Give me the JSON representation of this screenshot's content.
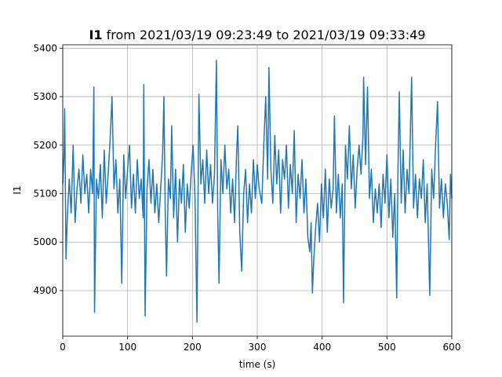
{
  "chart_data": {
    "type": "line",
    "title_bold": "I1",
    "title": "from 2021/03/19 09:23:49 to 2021/03/19 09:33:49",
    "x_label": "time (s)",
    "y_label": "I1",
    "xlim": [
      0,
      600
    ],
    "xticks": [
      0,
      100,
      200,
      300,
      400,
      500,
      600
    ],
    "ylim": [
      4806,
      5407
    ],
    "yticks": [
      4900,
      5000,
      5100,
      5200,
      5300,
      5400
    ],
    "grid": true,
    "color": "#1f77b4",
    "x": [
      0,
      2,
      3,
      5,
      7,
      10,
      13,
      16,
      19,
      22,
      25,
      28,
      31,
      34,
      37,
      40,
      43,
      46,
      48,
      49,
      52,
      55,
      58,
      61,
      64,
      67,
      70,
      73,
      76,
      79,
      82,
      85,
      88,
      91,
      94,
      97,
      100,
      103,
      106,
      109,
      112,
      115,
      118,
      121,
      124,
      125,
      127,
      130,
      133,
      136,
      139,
      142,
      145,
      148,
      151,
      154,
      156,
      158,
      160,
      163,
      166,
      168,
      171,
      174,
      177,
      180,
      183,
      186,
      189,
      192,
      195,
      198,
      201,
      204,
      207,
      210,
      213,
      216,
      219,
      222,
      225,
      228,
      231,
      234,
      237,
      239,
      241,
      244,
      247,
      250,
      253,
      256,
      259,
      262,
      265,
      268,
      270,
      273,
      276,
      279,
      282,
      285,
      288,
      291,
      294,
      297,
      300,
      303,
      307,
      310,
      313,
      316,
      318,
      321,
      324,
      327,
      330,
      333,
      336,
      339,
      342,
      345,
      348,
      351,
      354,
      357,
      360,
      363,
      366,
      369,
      372,
      375,
      378,
      381,
      383,
      385,
      387,
      390,
      393,
      396,
      399,
      402,
      405,
      408,
      411,
      414,
      417,
      419,
      422,
      425,
      428,
      431,
      433,
      436,
      439,
      442,
      445,
      448,
      451,
      454,
      457,
      460,
      463,
      464,
      467,
      470,
      473,
      476,
      479,
      482,
      485,
      488,
      491,
      494,
      497,
      500,
      503,
      506,
      509,
      512,
      515,
      517,
      519,
      522,
      525,
      528,
      531,
      534,
      538,
      541,
      544,
      547,
      550,
      553,
      556,
      559,
      562,
      566,
      569,
      572,
      575,
      578,
      581,
      584,
      587,
      590,
      593,
      596,
      598,
      600
    ],
    "values": [
      5120,
      5180,
      5275,
      4965,
      5050,
      5130,
      5060,
      5200,
      5040,
      5110,
      5150,
      5080,
      5180,
      5100,
      5140,
      5060,
      5150,
      5100,
      5320,
      4855,
      5130,
      5090,
      5160,
      5050,
      5190,
      5080,
      5140,
      5210,
      5300,
      5110,
      5170,
      5060,
      5130,
      4915,
      5180,
      5090,
      5150,
      5200,
      5070,
      5140,
      5060,
      5170,
      5090,
      5130,
      5050,
      5325,
      4848,
      5110,
      5170,
      5080,
      5150,
      5060,
      5120,
      5040,
      5110,
      5180,
      5300,
      5070,
      4930,
      5130,
      5090,
      5240,
      5050,
      5150,
      5000,
      5130,
      5080,
      5160,
      5020,
      5120,
      5070,
      5140,
      5200,
      5090,
      4835,
      5305,
      5120,
      5170,
      5080,
      5190,
      5100,
      5160,
      5080,
      5140,
      5375,
      5060,
      4915,
      5170,
      5100,
      5200,
      5110,
      5150,
      5060,
      5130,
      5040,
      5180,
      5240,
      5020,
      4940,
      5100,
      5150,
      5040,
      5120,
      5060,
      5170,
      5090,
      5160,
      5110,
      5080,
      5200,
      5300,
      5130,
      5360,
      5150,
      5080,
      5220,
      5120,
      5190,
      5060,
      5170,
      5130,
      5200,
      5070,
      5160,
      5100,
      5230,
      5040,
      5140,
      5090,
      5170,
      5060,
      5130,
      5010,
      4980,
      5040,
      4895,
      4960,
      5030,
      5080,
      5000,
      5120,
      5050,
      5150,
      5020,
      5130,
      5070,
      5110,
      5260,
      5060,
      5140,
      5050,
      5120,
      4875,
      5200,
      5130,
      5240,
      5110,
      5180,
      5070,
      5150,
      5200,
      5140,
      5220,
      5340,
      5160,
      5320,
      5090,
      5150,
      5040,
      5110,
      5060,
      5120,
      5030,
      5140,
      5080,
      5180,
      5050,
      5130,
      5010,
      5100,
      4885,
      5150,
      5310,
      5080,
      5190,
      5060,
      5150,
      5100,
      5340,
      5070,
      5140,
      5050,
      5130,
      5090,
      5170,
      5040,
      5120,
      4890,
      5150,
      5090,
      5200,
      5290,
      5070,
      5130,
      5050,
      5120,
      5080,
      5005,
      5140,
      5090
    ]
  }
}
